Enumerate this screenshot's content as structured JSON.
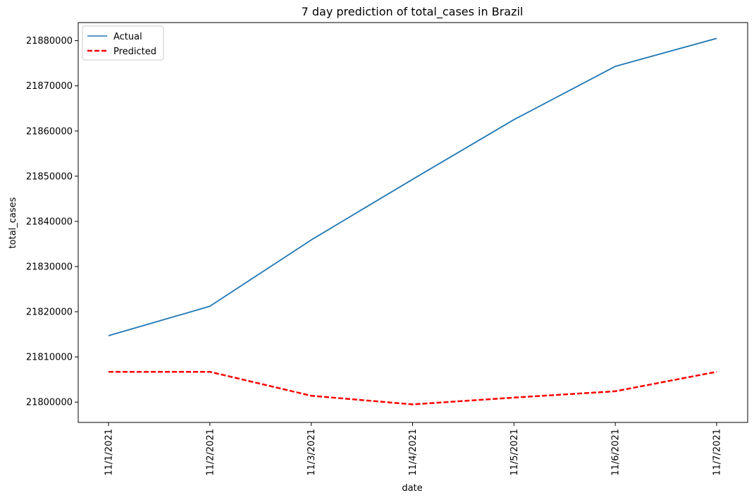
{
  "chart_data": {
    "type": "line",
    "title": "7 day prediction of total_cases in Brazil",
    "xlabel": "date",
    "ylabel": "total_cases",
    "categories": [
      "11/1/2021",
      "11/2/2021",
      "11/3/2021",
      "11/4/2021",
      "11/5/2021",
      "11/6/2021",
      "11/7/2021"
    ],
    "ylim": [
      21795500,
      21884000
    ],
    "yticks": [
      21800000,
      21810000,
      21820000,
      21830000,
      21840000,
      21850000,
      21860000,
      21870000,
      21880000
    ],
    "ytick_labels": [
      "21800000",
      "21810000",
      "21820000",
      "21830000",
      "21840000",
      "21850000",
      "21860000",
      "21870000",
      "21880000"
    ],
    "grid": false,
    "legend_position": "top-left",
    "series": [
      {
        "name": "Actual",
        "color": "#1f77b4",
        "style": "solid",
        "values": [
          21814700,
          21821200,
          21835900,
          21849300,
          21862500,
          21874300,
          21880500
        ]
      },
      {
        "name": "Predicted",
        "color": "#ff0000",
        "style": "dashed",
        "values": [
          21806700,
          21806700,
          21801400,
          21799500,
          21801000,
          21802400,
          21806700
        ]
      }
    ]
  }
}
